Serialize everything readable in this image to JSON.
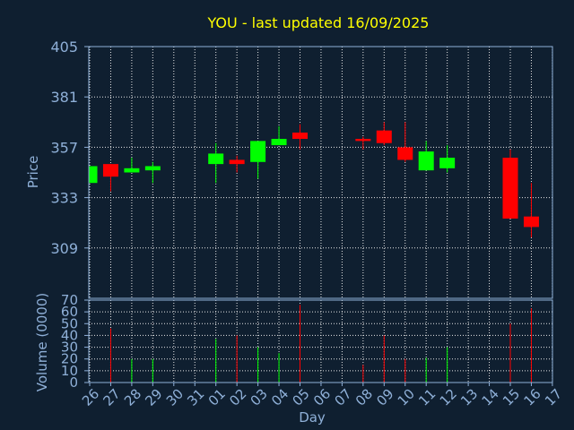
{
  "colors": {
    "background": "#0f1f30",
    "title": "#ffff00",
    "axis_text": "#8fb0d8",
    "frame": "#8fb0d8",
    "grid": "#e8e8e8",
    "up": "#00ff00",
    "down": "#ff0000"
  },
  "chart_data": {
    "type": "candlestick",
    "title": "YOU - last updated 16/09/2025",
    "price_axis": {
      "label": "Price",
      "ylim": [
        285,
        405
      ],
      "ticks": [
        "309",
        "333",
        "357",
        "381",
        "405"
      ]
    },
    "volume_axis": {
      "label": "Volume (0000)",
      "ylim": [
        0,
        70
      ],
      "ticks": [
        "0",
        "10",
        "20",
        "30",
        "40",
        "50",
        "60",
        "70"
      ]
    },
    "xlabel": "Day",
    "grid": true,
    "x_ticks": [
      "26",
      "27",
      "28",
      "29",
      "30",
      "31",
      "01",
      "02",
      "03",
      "04",
      "05",
      "06",
      "07",
      "08",
      "09",
      "10",
      "11",
      "12",
      "13",
      "14",
      "15",
      "16",
      "17"
    ],
    "candles": [
      {
        "day": "26",
        "open": 340,
        "close": 348,
        "high": 348,
        "low": 340,
        "volume": 0
      },
      {
        "day": "27",
        "open": 349,
        "close": 343,
        "high": 349,
        "low": 336,
        "volume": 46
      },
      {
        "day": "28",
        "open": 345,
        "close": 347,
        "high": 352,
        "low": 345,
        "volume": 20
      },
      {
        "day": "29",
        "open": 346,
        "close": 348,
        "high": 350,
        "low": 340,
        "volume": 20
      },
      {
        "day": "01",
        "open": 349,
        "close": 354,
        "high": 359,
        "low": 340,
        "volume": 37
      },
      {
        "day": "02",
        "open": 351,
        "close": 349,
        "high": 353,
        "low": 345,
        "volume": 40
      },
      {
        "day": "03",
        "open": 350,
        "close": 360,
        "high": 360,
        "low": 342,
        "volume": 30
      },
      {
        "day": "04",
        "open": 358,
        "close": 361,
        "high": 367,
        "low": 358,
        "volume": 25
      },
      {
        "day": "05",
        "open": 364,
        "close": 361,
        "high": 368,
        "low": 356,
        "volume": 66
      },
      {
        "day": "08",
        "open": 361,
        "close": 360,
        "high": 362,
        "low": 356,
        "volume": 15
      },
      {
        "day": "09",
        "open": 365,
        "close": 359,
        "high": 369,
        "low": 358,
        "volume": 40
      },
      {
        "day": "10",
        "open": 357,
        "close": 351,
        "high": 369,
        "low": 350,
        "volume": 20
      },
      {
        "day": "11",
        "open": 346,
        "close": 355,
        "high": 360,
        "low": 346,
        "volume": 21
      },
      {
        "day": "12",
        "open": 347,
        "close": 352,
        "high": 358,
        "low": 345,
        "volume": 30
      },
      {
        "day": "15",
        "open": 352,
        "close": 323,
        "high": 356,
        "low": 323,
        "volume": 50
      },
      {
        "day": "16",
        "open": 324,
        "close": 319,
        "high": 340,
        "low": 314,
        "volume": 63
      }
    ]
  }
}
